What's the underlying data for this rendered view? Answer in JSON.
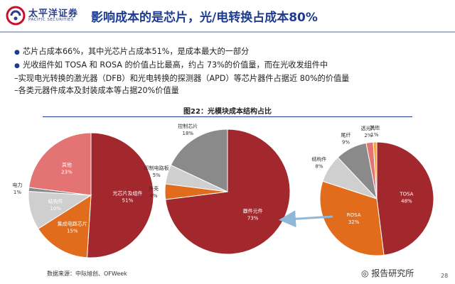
{
  "header": {
    "logo_cn": "太平洋证券",
    "logo_en": "PACIFIC SECURITIES",
    "title": "影响成本的是芯片，光/电转换占成本80%"
  },
  "bullets": [
    "芯片占成本66%，其中光芯片占成本51%，是成本最大的一部分",
    "光收组件如 TOSA 和 ROSA 的价值占比最高，约占 73%的价值量，而在光收发组件中",
    "–实现电光转换的激光器（DFB）和光电转换的探测器（APD）等芯片器件占据近 80%的价值量",
    "–各类元器件成本及封装成本等占据20%价值量"
  ],
  "figure": {
    "title": "图22：光模块成本结构占比"
  },
  "source": "数据来源：中际旭创、OFWeek",
  "watermark": "报告研究所",
  "page_number": "28",
  "colors": {
    "dark_red": "#a3282e",
    "orange": "#e06c1c",
    "gray": "#8a8a8a",
    "light_gray": "#cfcfcf",
    "pink": "#e47474",
    "blue_title": "#1d3c8e",
    "arrow": "#8fb7d8"
  },
  "chart_data": [
    {
      "type": "pie",
      "title": "",
      "slices": [
        {
          "label": "光芯片及组件",
          "value": 51,
          "text": "51%",
          "color": "#a3282e"
        },
        {
          "label": "集成电路芯片",
          "value": 15,
          "text": "15%",
          "color": "#e06c1c"
        },
        {
          "label": "结构件",
          "value": 10,
          "text": "10%",
          "color": "#cfcfcf"
        },
        {
          "label": "电力",
          "value": 1,
          "text": "1%",
          "color": "#8a8a8a"
        },
        {
          "label": "其他",
          "value": 23,
          "text": "23%",
          "color": "#e47474"
        }
      ]
    },
    {
      "type": "pie",
      "title": "",
      "slices": [
        {
          "label": "器件元件",
          "value": 73,
          "text": "73%",
          "color": "#a3282e"
        },
        {
          "label": "外壳",
          "value": 4,
          "text": "4%",
          "color": "#e06c1c"
        },
        {
          "label": "印制电路板",
          "value": 5,
          "text": "5%",
          "color": "#cfcfcf"
        },
        {
          "label": "控制芯片",
          "value": 18,
          "text": "18%",
          "color": "#8a8a8a"
        }
      ]
    },
    {
      "type": "pie",
      "title": "",
      "slices": [
        {
          "label": "TOSA",
          "value": 48,
          "text": "48%",
          "color": "#a3282e"
        },
        {
          "label": "ROSA",
          "value": 32,
          "text": "32%",
          "color": "#e06c1c"
        },
        {
          "label": "结构件",
          "value": 8,
          "text": "8%",
          "color": "#cfcfcf"
        },
        {
          "label": "尾纤",
          "value": 9,
          "text": "9%",
          "color": "#8a8a8a"
        },
        {
          "label": "透光片",
          "value": 2,
          "text": "2%",
          "color": "#e47474"
        },
        {
          "label": "其他",
          "value": 1,
          "text": "1%",
          "color": "#f2a640"
        }
      ]
    }
  ]
}
